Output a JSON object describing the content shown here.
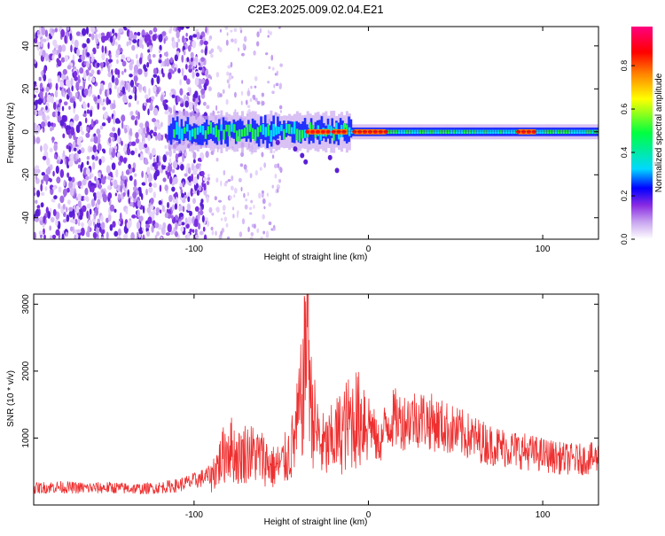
{
  "chart_data": [
    {
      "type": "heatmap",
      "title": "C2E3.2025.009.02.04.E21",
      "xlabel": "Height of straight line (km)",
      "ylabel": "Frequency (Hz)",
      "xlim": [
        -192,
        132
      ],
      "ylim": [
        -50,
        49
      ],
      "xticks": [
        -100,
        0,
        100
      ],
      "yticks": [
        -40,
        -20,
        0,
        20,
        40
      ],
      "grid": false,
      "colorbar": {
        "label": "Normalized spectral amplitude",
        "range": [
          0,
          0.98
        ],
        "ticks": [
          0.0,
          0.2,
          0.4,
          0.6,
          0.8
        ],
        "colormap": [
          "#ffffff",
          "#c9a6f0",
          "#8a2be2",
          "#0000ff",
          "#00d8ff",
          "#00ff40",
          "#ffff00",
          "#ff8000",
          "#ff0000",
          "#ff0080"
        ]
      },
      "features": {
        "broadband_noise_region_km": [
          -192,
          -92
        ],
        "sparse_noise_region_km": [
          -92,
          -50
        ],
        "signal_band_start_km": -115,
        "signal_center_hz": 0,
        "signal_peak_segments_km": [
          [
            -35,
            -22
          ],
          [
            -20,
            -12
          ],
          [
            -8,
            10
          ],
          [
            86,
            96
          ]
        ]
      }
    },
    {
      "type": "line",
      "title": "",
      "xlabel": "Height of straight line (km)",
      "ylabel": "SNR (10 * v/v)",
      "xlim": [
        -192,
        132
      ],
      "ylim": [
        0,
        3150
      ],
      "xticks": [
        -100,
        0,
        100
      ],
      "yticks": [
        1000,
        2000,
        3000
      ],
      "color": "#ee3030",
      "grid": false,
      "series": [
        {
          "x": [
            -192,
            -180,
            -170,
            -160,
            -150,
            -140,
            -130,
            -120,
            -110,
            -100,
            -90,
            -85,
            -80,
            -75,
            -70,
            -65,
            -60,
            -55,
            -50,
            -45,
            -42,
            -40,
            -37,
            -35,
            -33,
            -30,
            -27,
            -25,
            -22,
            -20,
            -17,
            -14,
            -12,
            -10,
            -7,
            -5,
            -3,
            0,
            3,
            5,
            8,
            10,
            12,
            15,
            20,
            25,
            30,
            35,
            40,
            45,
            50,
            60,
            70,
            80,
            90,
            100,
            110,
            120,
            132
          ],
          "y": [
            250,
            270,
            260,
            250,
            260,
            250,
            240,
            260,
            290,
            360,
            450,
            650,
            900,
            700,
            800,
            750,
            700,
            560,
            600,
            780,
            1000,
            1300,
            1800,
            3150,
            1500,
            1100,
            900,
            850,
            900,
            1000,
            1050,
            1150,
            1200,
            1250,
            1300,
            1250,
            1350,
            1300,
            1100,
            900,
            1000,
            1200,
            1250,
            1300,
            1250,
            1300,
            1300,
            1250,
            1200,
            1150,
            1100,
            1000,
            900,
            850,
            800,
            750,
            700,
            680,
            700
          ]
        }
      ]
    }
  ]
}
